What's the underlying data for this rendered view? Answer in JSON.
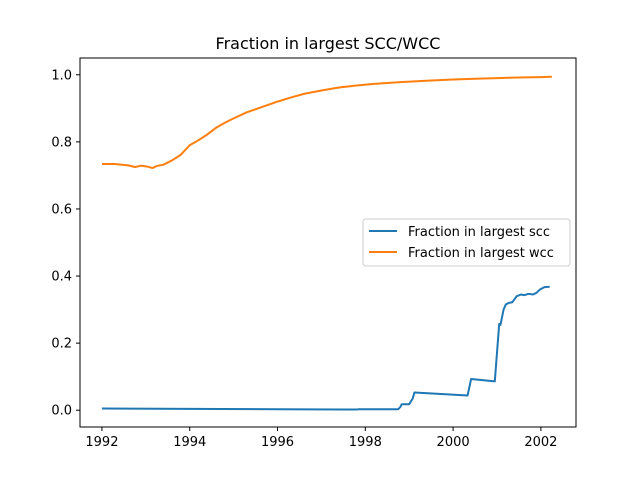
{
  "chart_data": {
    "type": "line",
    "title": "Fraction in largest SCC/WCC",
    "xlabel": "",
    "ylabel": "",
    "xlim": [
      1991.5,
      2002.8
    ],
    "ylim": [
      -0.05,
      1.05
    ],
    "xticks": [
      1992,
      1994,
      1996,
      1998,
      2000,
      2002
    ],
    "xtick_labels": [
      "1992",
      "1994",
      "1996",
      "1998",
      "2000",
      "2002"
    ],
    "yticks": [
      0.0,
      0.2,
      0.4,
      0.6,
      0.8,
      1.0
    ],
    "ytick_labels": [
      "0.0",
      "0.2",
      "0.4",
      "0.6",
      "0.8",
      "1.0"
    ],
    "grid": false,
    "legend_position": "center-right",
    "series": [
      {
        "name": "Fraction in largest scc",
        "color": "#1f77b4",
        "x": [
          1992.0,
          1994.0,
          1996.0,
          1997.5,
          1997.8,
          1997.85,
          1998.5,
          1998.75,
          1998.8,
          1998.83,
          1999.0,
          1999.08,
          1999.12,
          2000.33,
          2000.41,
          2000.95,
          2001.05,
          2001.08,
          2001.15,
          2001.2,
          2001.27,
          2001.35,
          2001.45,
          2001.55,
          2001.62,
          2001.72,
          2001.82,
          2001.9,
          2001.98,
          2002.08,
          2002.2
        ],
        "y": [
          0.005,
          0.004,
          0.003,
          0.002,
          0.002,
          0.003,
          0.003,
          0.003,
          0.01,
          0.018,
          0.018,
          0.035,
          0.053,
          0.044,
          0.093,
          0.086,
          0.257,
          0.255,
          0.3,
          0.315,
          0.32,
          0.322,
          0.34,
          0.345,
          0.343,
          0.347,
          0.345,
          0.35,
          0.36,
          0.367,
          0.368
        ]
      },
      {
        "name": "Fraction in largest wcc",
        "color": "#ff7f0e",
        "x": [
          1992.0,
          1992.3,
          1992.6,
          1992.75,
          1992.9,
          1993.0,
          1993.05,
          1993.15,
          1993.25,
          1993.4,
          1993.6,
          1993.8,
          1994.0,
          1994.2,
          1994.4,
          1994.6,
          1994.8,
          1995.0,
          1995.3,
          1995.6,
          1996.0,
          1996.3,
          1996.6,
          1997.0,
          1997.4,
          1997.8,
          1998.2,
          1998.8,
          1999.5,
          2000.0,
          2000.5,
          2001.0,
          2001.5,
          2002.0,
          2002.25
        ],
        "y": [
          0.734,
          0.734,
          0.73,
          0.725,
          0.729,
          0.727,
          0.726,
          0.722,
          0.728,
          0.732,
          0.745,
          0.762,
          0.79,
          0.805,
          0.822,
          0.842,
          0.857,
          0.87,
          0.888,
          0.902,
          0.92,
          0.932,
          0.943,
          0.953,
          0.962,
          0.968,
          0.973,
          0.978,
          0.983,
          0.986,
          0.988,
          0.99,
          0.992,
          0.993,
          0.994
        ]
      }
    ]
  }
}
